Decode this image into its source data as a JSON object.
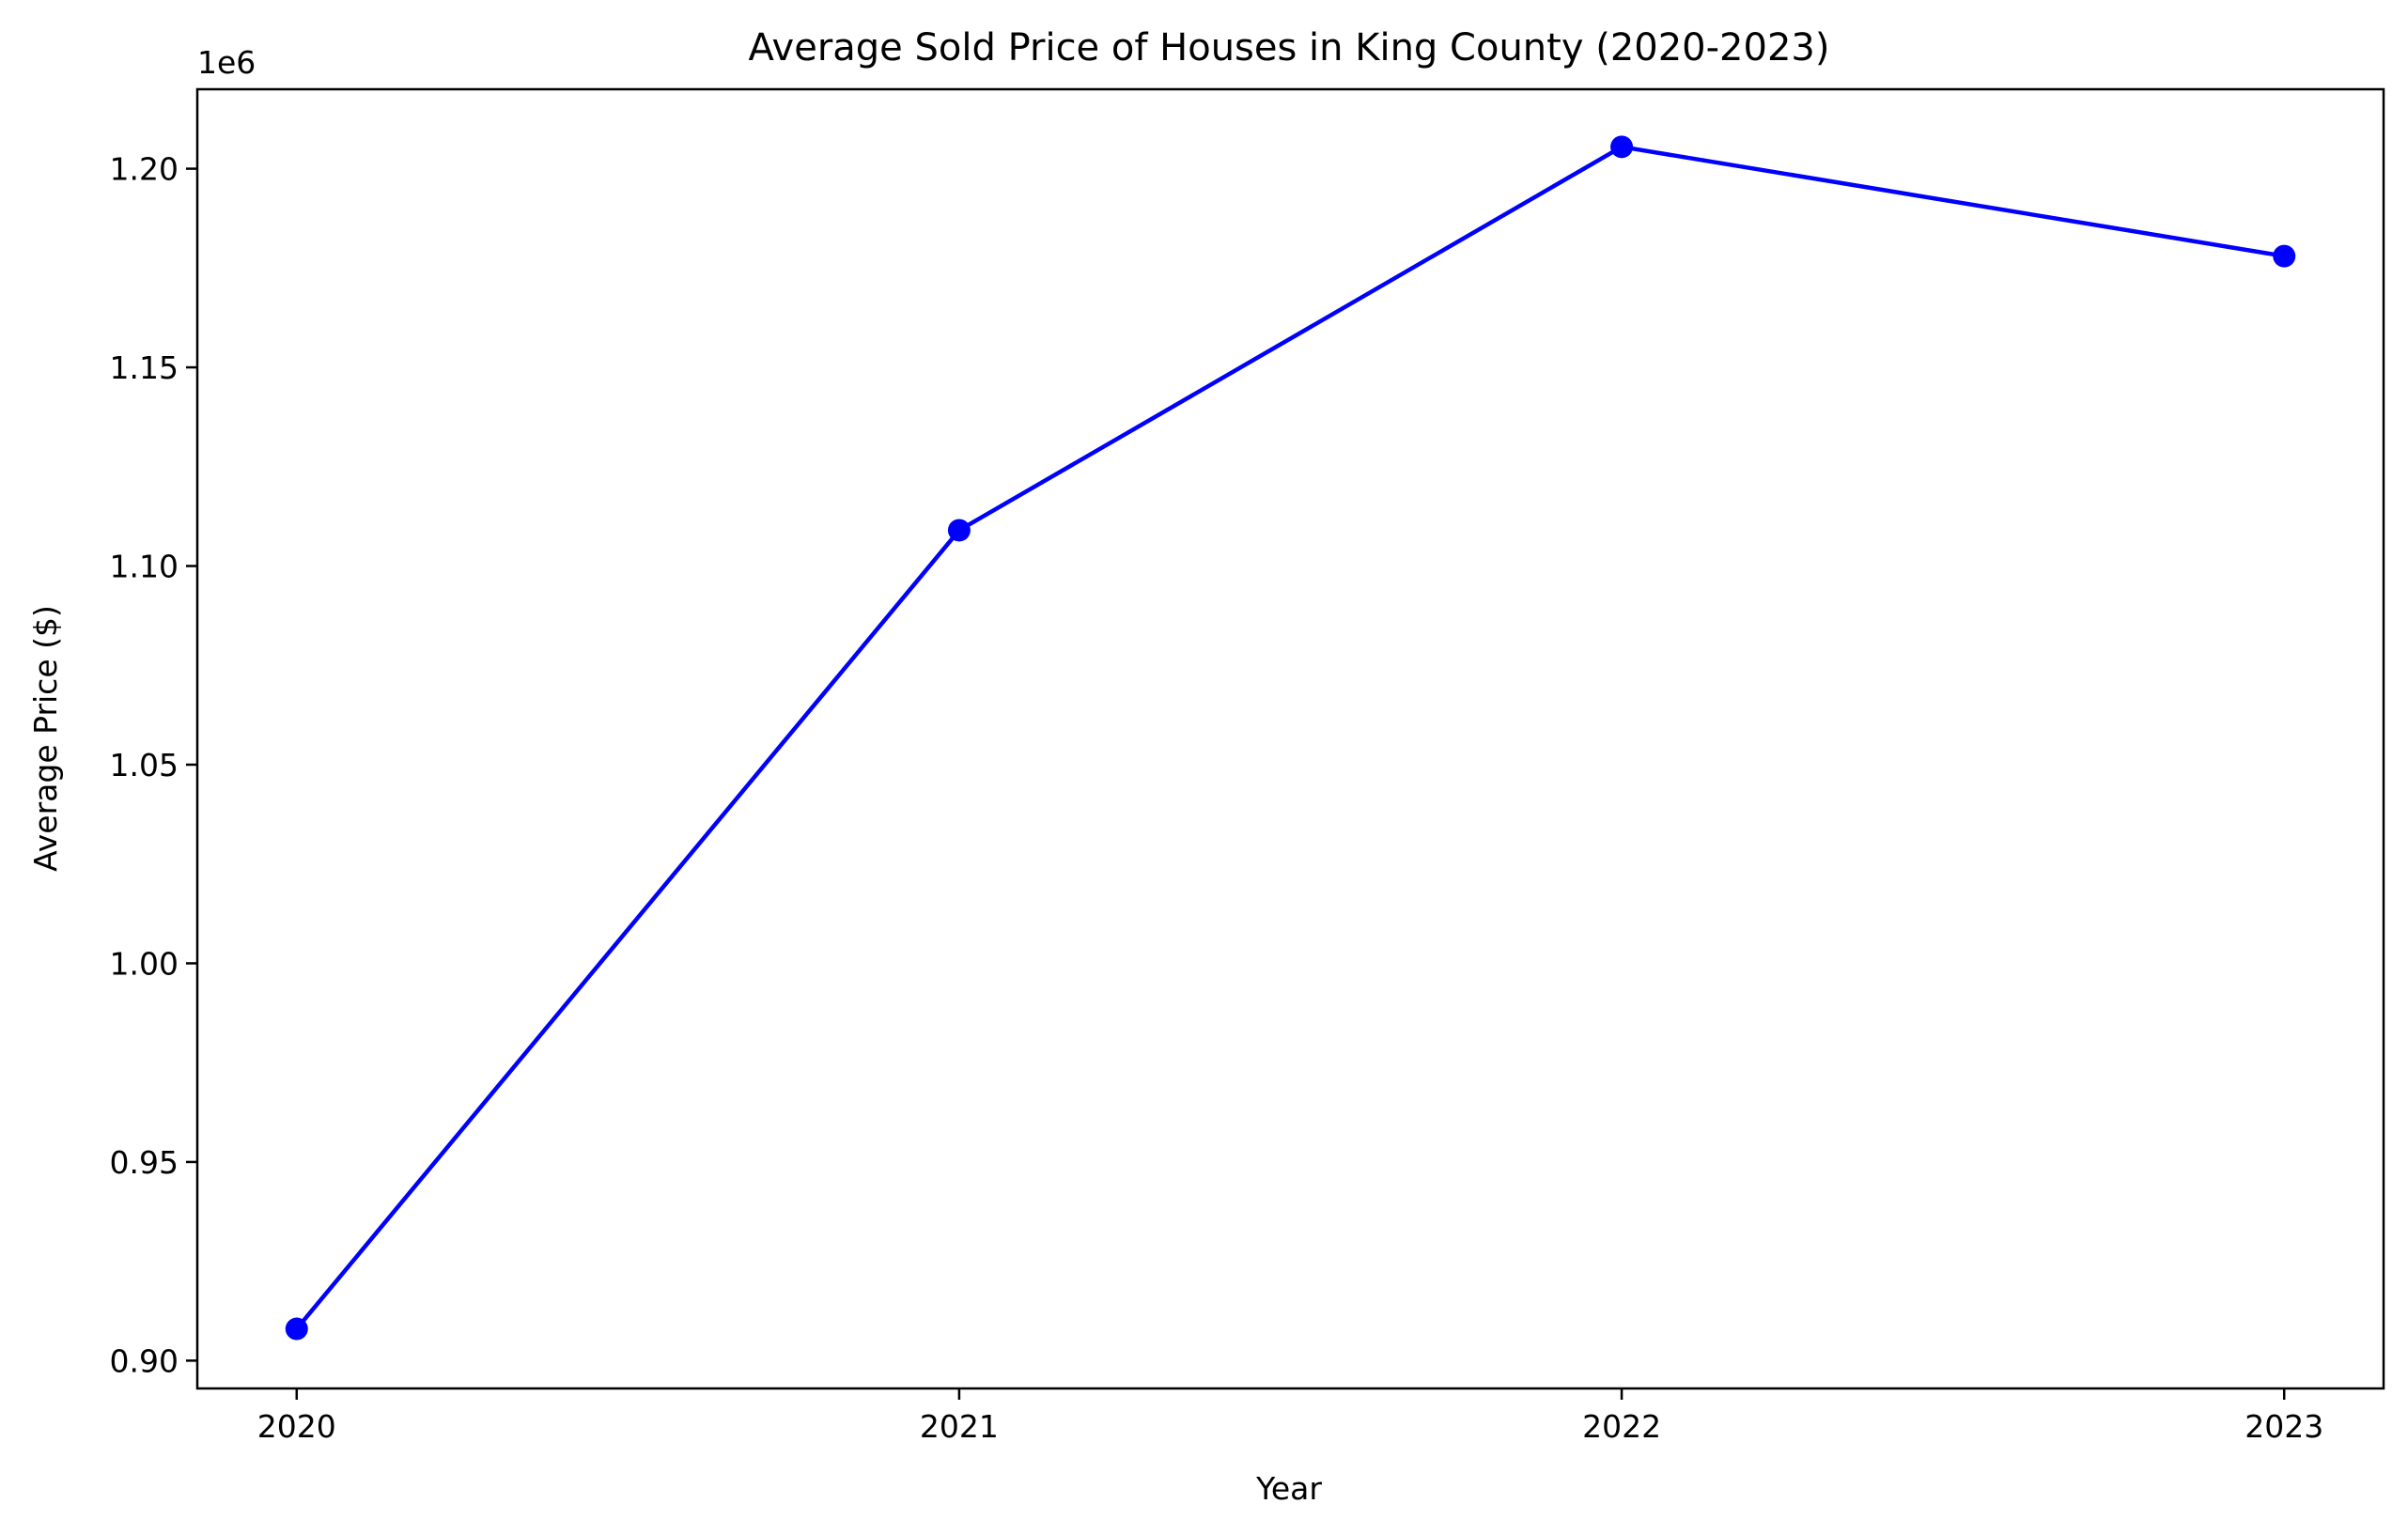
{
  "chart_data": {
    "type": "line",
    "title": "Average Sold Price of Houses in King County (2020-2023)",
    "xlabel": "Year",
    "ylabel": "Average Price ($)",
    "y_offset_label": "1e6",
    "categories": [
      "2020",
      "2021",
      "2022",
      "2023"
    ],
    "series": [
      {
        "color": "#0000ff",
        "marker": "circle",
        "values": [
          908000,
          1109000,
          1205500,
          1178000
        ]
      }
    ],
    "xlim": [
      2019.85,
      2023.15
    ],
    "ylim": [
      893000,
      1220000
    ],
    "yticks": [
      900000,
      950000,
      1000000,
      1050000,
      1100000,
      1150000,
      1200000
    ],
    "ytick_labels": [
      "0.90",
      "0.95",
      "1.00",
      "1.05",
      "1.10",
      "1.15",
      "1.20"
    ],
    "grid": false,
    "legend": "none"
  }
}
